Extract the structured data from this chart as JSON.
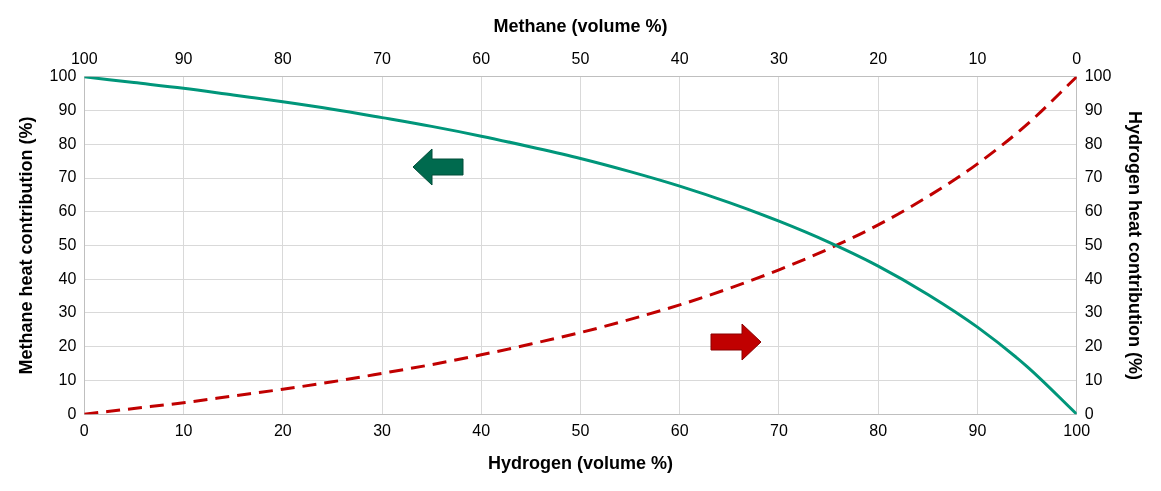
{
  "chart_data": {
    "type": "line",
    "xlabel": "Hydrogen (volume %)",
    "x2label": "Methane (volume %)",
    "ylabel": "Methane heat contribution (%)",
    "y2label": "Hydrogen heat contribution (%)",
    "x": [
      0,
      5,
      10,
      15,
      20,
      25,
      30,
      35,
      40,
      45,
      50,
      55,
      60,
      65,
      70,
      75,
      80,
      85,
      90,
      95,
      100
    ],
    "series": [
      {
        "color": "#00967a",
        "line_style": "solid",
        "values": [
          100,
          98.3,
          96.6,
          94.6,
          92.6,
          90.4,
          87.9,
          85.3,
          82.4,
          79.2,
          75.8,
          71.9,
          67.6,
          62.7,
          57.2,
          51.0,
          43.9,
          35.5,
          25.8,
          14.1,
          0
        ]
      },
      {
        "color": "#c00000",
        "line_style": "dashed",
        "values": [
          0,
          1.7,
          3.4,
          5.4,
          7.4,
          9.6,
          12.1,
          14.7,
          17.6,
          20.8,
          24.2,
          28.1,
          32.4,
          37.3,
          42.8,
          49.0,
          56.1,
          64.5,
          74.2,
          85.9,
          100
        ]
      }
    ],
    "xlim": [
      0,
      100
    ],
    "xticks": [
      0,
      10,
      20,
      30,
      40,
      50,
      60,
      70,
      80,
      90,
      100
    ],
    "x2lim": [
      100,
      0
    ],
    "x2ticks": [
      100,
      90,
      80,
      70,
      60,
      50,
      40,
      30,
      20,
      10,
      0
    ],
    "ylim": [
      0,
      100
    ],
    "yticks": [
      0,
      10,
      20,
      30,
      40,
      50,
      60,
      70,
      80,
      90,
      100
    ],
    "y2lim": [
      0,
      100
    ],
    "y2ticks": [
      0,
      10,
      20,
      30,
      40,
      50,
      60,
      70,
      80,
      90,
      100
    ],
    "grid": true,
    "legend": false,
    "marker": "none"
  }
}
